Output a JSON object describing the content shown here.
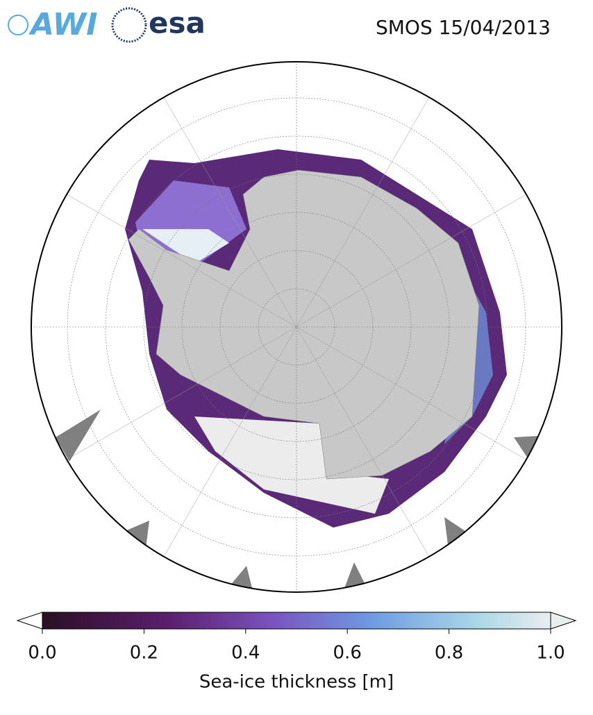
{
  "header": {
    "logos": [
      "AWI",
      "esa"
    ],
    "title": "SMOS 15/04/2013"
  },
  "colorbar": {
    "label": "Sea-ice thickness [m]",
    "lim": [
      0,
      1
    ],
    "ticks": [
      {
        "value": 0,
        "label": "0.0"
      },
      0.2,
      0.4,
      0.6,
      0.8,
      {
        "value": 1,
        "label": "1.0"
      }
    ]
  }
}
